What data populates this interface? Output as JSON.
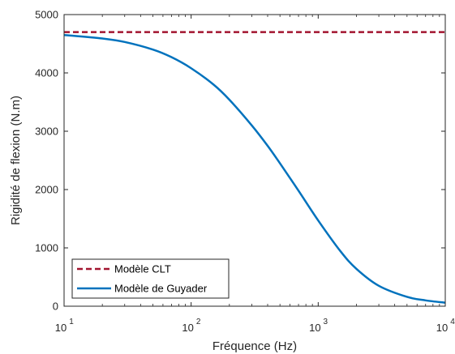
{
  "chart_data": {
    "type": "line",
    "xlabel": "Fréquence (Hz)",
    "ylabel": "Rigidité de flexion (N.m)",
    "xscale": "log",
    "xlim": [
      10,
      10000
    ],
    "ylim": [
      0,
      5000
    ],
    "xticks": [
      {
        "value": 10,
        "base": "10",
        "exp": "1"
      },
      {
        "value": 100,
        "base": "10",
        "exp": "2"
      },
      {
        "value": 1000,
        "base": "10",
        "exp": "3"
      },
      {
        "value": 10000,
        "base": "10",
        "exp": "4"
      }
    ],
    "yticks": [
      {
        "value": 0,
        "label": "0"
      },
      {
        "value": 1000,
        "label": "1000"
      },
      {
        "value": 2000,
        "label": "2000"
      },
      {
        "value": 3000,
        "label": "3000"
      },
      {
        "value": 4000,
        "label": "4000"
      },
      {
        "value": 5000,
        "label": "5000"
      }
    ],
    "grid": false,
    "legend_position": "bottom-left",
    "series": [
      {
        "name": "Modèle CLT",
        "color": "#A2142F",
        "dash": "dashed",
        "x": [
          10,
          10000
        ],
        "y": [
          4700,
          4700
        ]
      },
      {
        "name": "Modèle de Guyader",
        "color": "#0072BD",
        "dash": "solid",
        "x": [
          10,
          20,
          30,
          50,
          70,
          100,
          150,
          200,
          300,
          400,
          500,
          700,
          1000,
          1500,
          2000,
          3000,
          5000,
          7000,
          10000
        ],
        "y": [
          4650,
          4590,
          4530,
          4400,
          4270,
          4080,
          3800,
          3540,
          3100,
          2750,
          2450,
          1980,
          1470,
          940,
          640,
          350,
          160,
          100,
          60
        ]
      }
    ]
  }
}
